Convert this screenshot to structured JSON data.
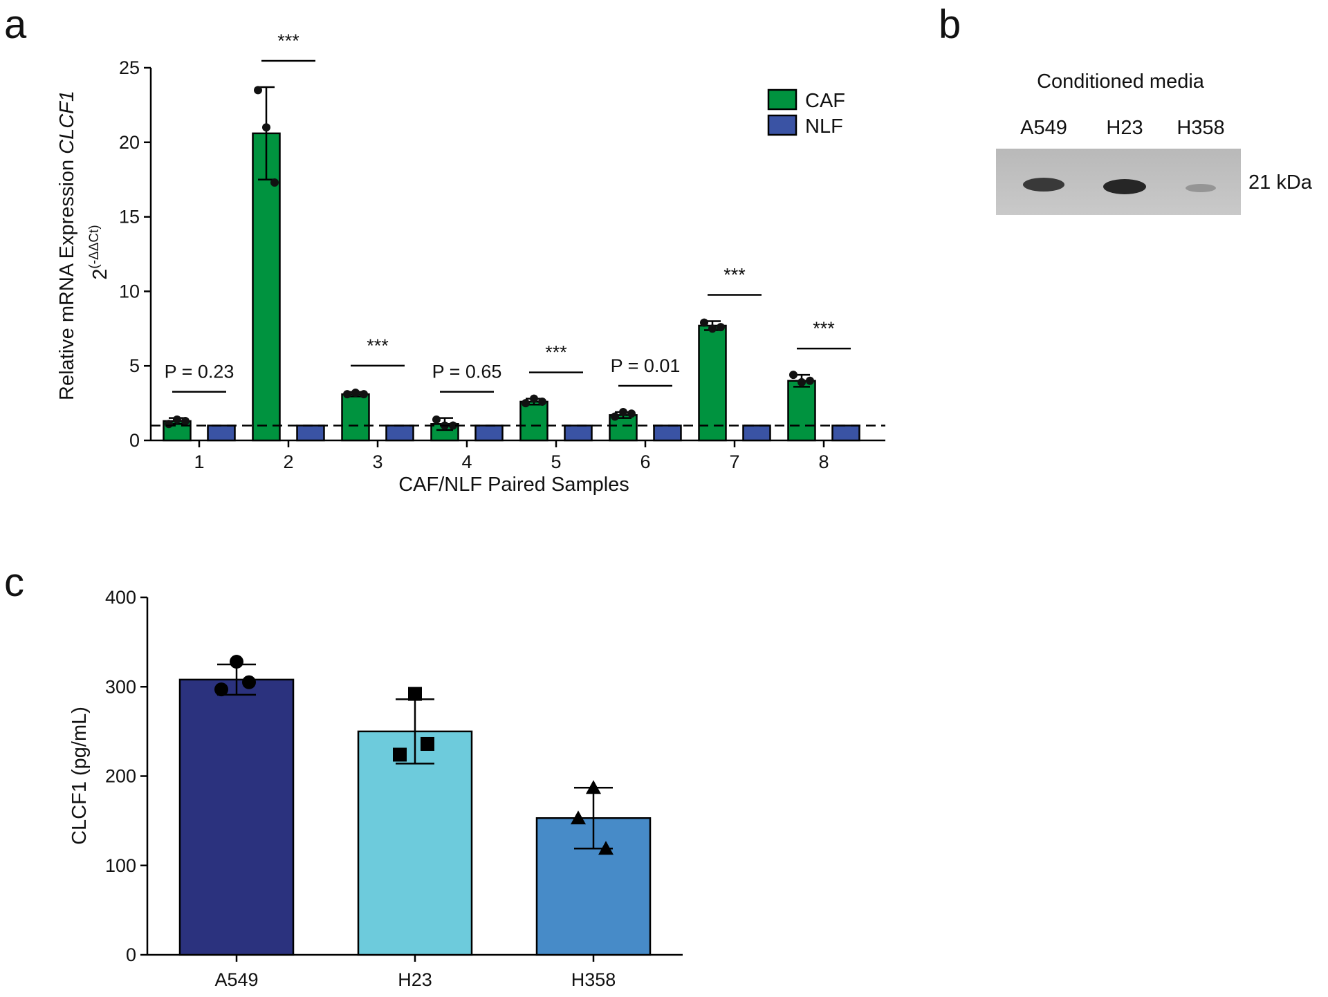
{
  "chart_data": [
    {
      "type": "bar",
      "panel_label": "a",
      "y_label": "Relative mRNA Expression",
      "y_label_gene": "CLCF1",
      "y_label_formula_base": "2",
      "y_label_formula_exponent": "(-ΔΔCt)",
      "x_label": "CAF/NLF Paired Samples",
      "categories": [
        "1",
        "2",
        "3",
        "4",
        "5",
        "6",
        "7",
        "8"
      ],
      "series": [
        {
          "name": "CAF",
          "color": "#00933f",
          "values": [
            1.3,
            20.6,
            3.1,
            1.1,
            2.6,
            1.7,
            7.7,
            4.0
          ],
          "errors": [
            0.2,
            3.1,
            0.15,
            0.4,
            0.2,
            0.2,
            0.3,
            0.4
          ],
          "points": [
            [
              1.1,
              1.4,
              1.3
            ],
            [
              23.5,
              21.0,
              17.3
            ],
            [
              3.1,
              3.2,
              3.1
            ],
            [
              1.4,
              1.0,
              1.0
            ],
            [
              2.5,
              2.8,
              2.6
            ],
            [
              1.6,
              1.9,
              1.8
            ],
            [
              7.9,
              7.5,
              7.6
            ],
            [
              4.4,
              3.9,
              4.0
            ]
          ]
        },
        {
          "name": "NLF",
          "color": "#3a53a4",
          "values": [
            1.0,
            1.0,
            1.0,
            1.0,
            1.0,
            1.0,
            1.0,
            1.0
          ]
        }
      ],
      "annotations": [
        "P = 0.23",
        "***",
        "***",
        "P = 0.65",
        "***",
        "P = 0.01",
        "***",
        "***"
      ],
      "reference_line": 1,
      "ylim": [
        0,
        25
      ],
      "yticks": [
        0,
        5,
        10,
        15,
        20,
        25
      ],
      "legend": "top-right"
    },
    {
      "type": "bar",
      "panel_label": "c",
      "y_label": "CLCF1 (pg/mL)",
      "categories": [
        "A549",
        "H23",
        "H358"
      ],
      "values": [
        308,
        250,
        153
      ],
      "errors": [
        17,
        36,
        34
      ],
      "points": [
        [
          328,
          297,
          305
        ],
        [
          292,
          224,
          236
        ],
        [
          187,
          153,
          119
        ]
      ],
      "markers": [
        "circle",
        "square",
        "triangle"
      ],
      "colors": [
        "#2b327e",
        "#6dcbdc",
        "#478bc8"
      ],
      "ylim": [
        0,
        400
      ],
      "yticks": [
        0,
        100,
        200,
        300,
        400
      ]
    }
  ],
  "blot": {
    "panel_label": "b",
    "title": "Conditioned media",
    "lanes": [
      "A549",
      "H23",
      "H358"
    ],
    "band_label": "21 kDa"
  }
}
